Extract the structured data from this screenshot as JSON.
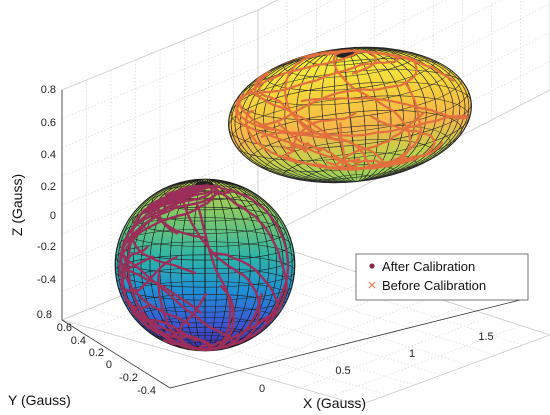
{
  "chart_data": {
    "type": "scatter",
    "dimensions": 3,
    "title": "",
    "xlabel": "X (Gauss)",
    "ylabel": "Y (Gauss)",
    "zlabel": "Z (Gauss)",
    "xlim": [
      -0.4,
      1.9
    ],
    "ylim": [
      -0.45,
      0.85
    ],
    "zlim": [
      -0.5,
      0.85
    ],
    "x_ticks": [
      "0",
      "0.5",
      "1",
      "1.5"
    ],
    "y_ticks": [
      "0.8",
      "0.6",
      "0.4",
      "0.2",
      "0",
      "-0.2",
      "-0.4"
    ],
    "z_ticks": [
      "0.8",
      "0.6",
      "0.4",
      "0.2",
      "0",
      "-0.2",
      "-0.4"
    ],
    "grid": true,
    "box": true,
    "colormap": "parula",
    "legend": {
      "position": "bottom-right",
      "entries": [
        {
          "label": "After Calibration",
          "marker": "point",
          "color": "#8b2a4f"
        },
        {
          "label": "Before Calibration",
          "marker": "x",
          "color": "#e8896a"
        }
      ]
    },
    "surfaces": [
      {
        "name": "calibrated sphere",
        "center": [
          0,
          0.2,
          -0.1
        ],
        "radii": [
          0.35,
          0.35,
          0.35
        ]
      },
      {
        "name": "raw ellipsoid",
        "center": [
          1.25,
          0.35,
          0.45
        ],
        "radii": [
          0.75,
          0.45,
          0.28
        ]
      }
    ],
    "series": [
      {
        "name": "After Calibration",
        "points": [
          [
            0.1,
            0.3,
            0.1
          ],
          [
            -0.2,
            0.1,
            -0.2
          ],
          [
            0.25,
            0.0,
            0.05
          ],
          [
            0.0,
            0.45,
            -0.3
          ],
          [
            -0.1,
            -0.1,
            0.15
          ]
        ]
      },
      {
        "name": "Before Calibration",
        "points": [
          [
            1.3,
            0.6,
            0.6
          ],
          [
            0.8,
            0.3,
            0.4
          ],
          [
            1.7,
            0.2,
            0.5
          ],
          [
            1.1,
            0.0,
            0.35
          ],
          [
            1.5,
            0.7,
            0.3
          ]
        ]
      }
    ]
  }
}
